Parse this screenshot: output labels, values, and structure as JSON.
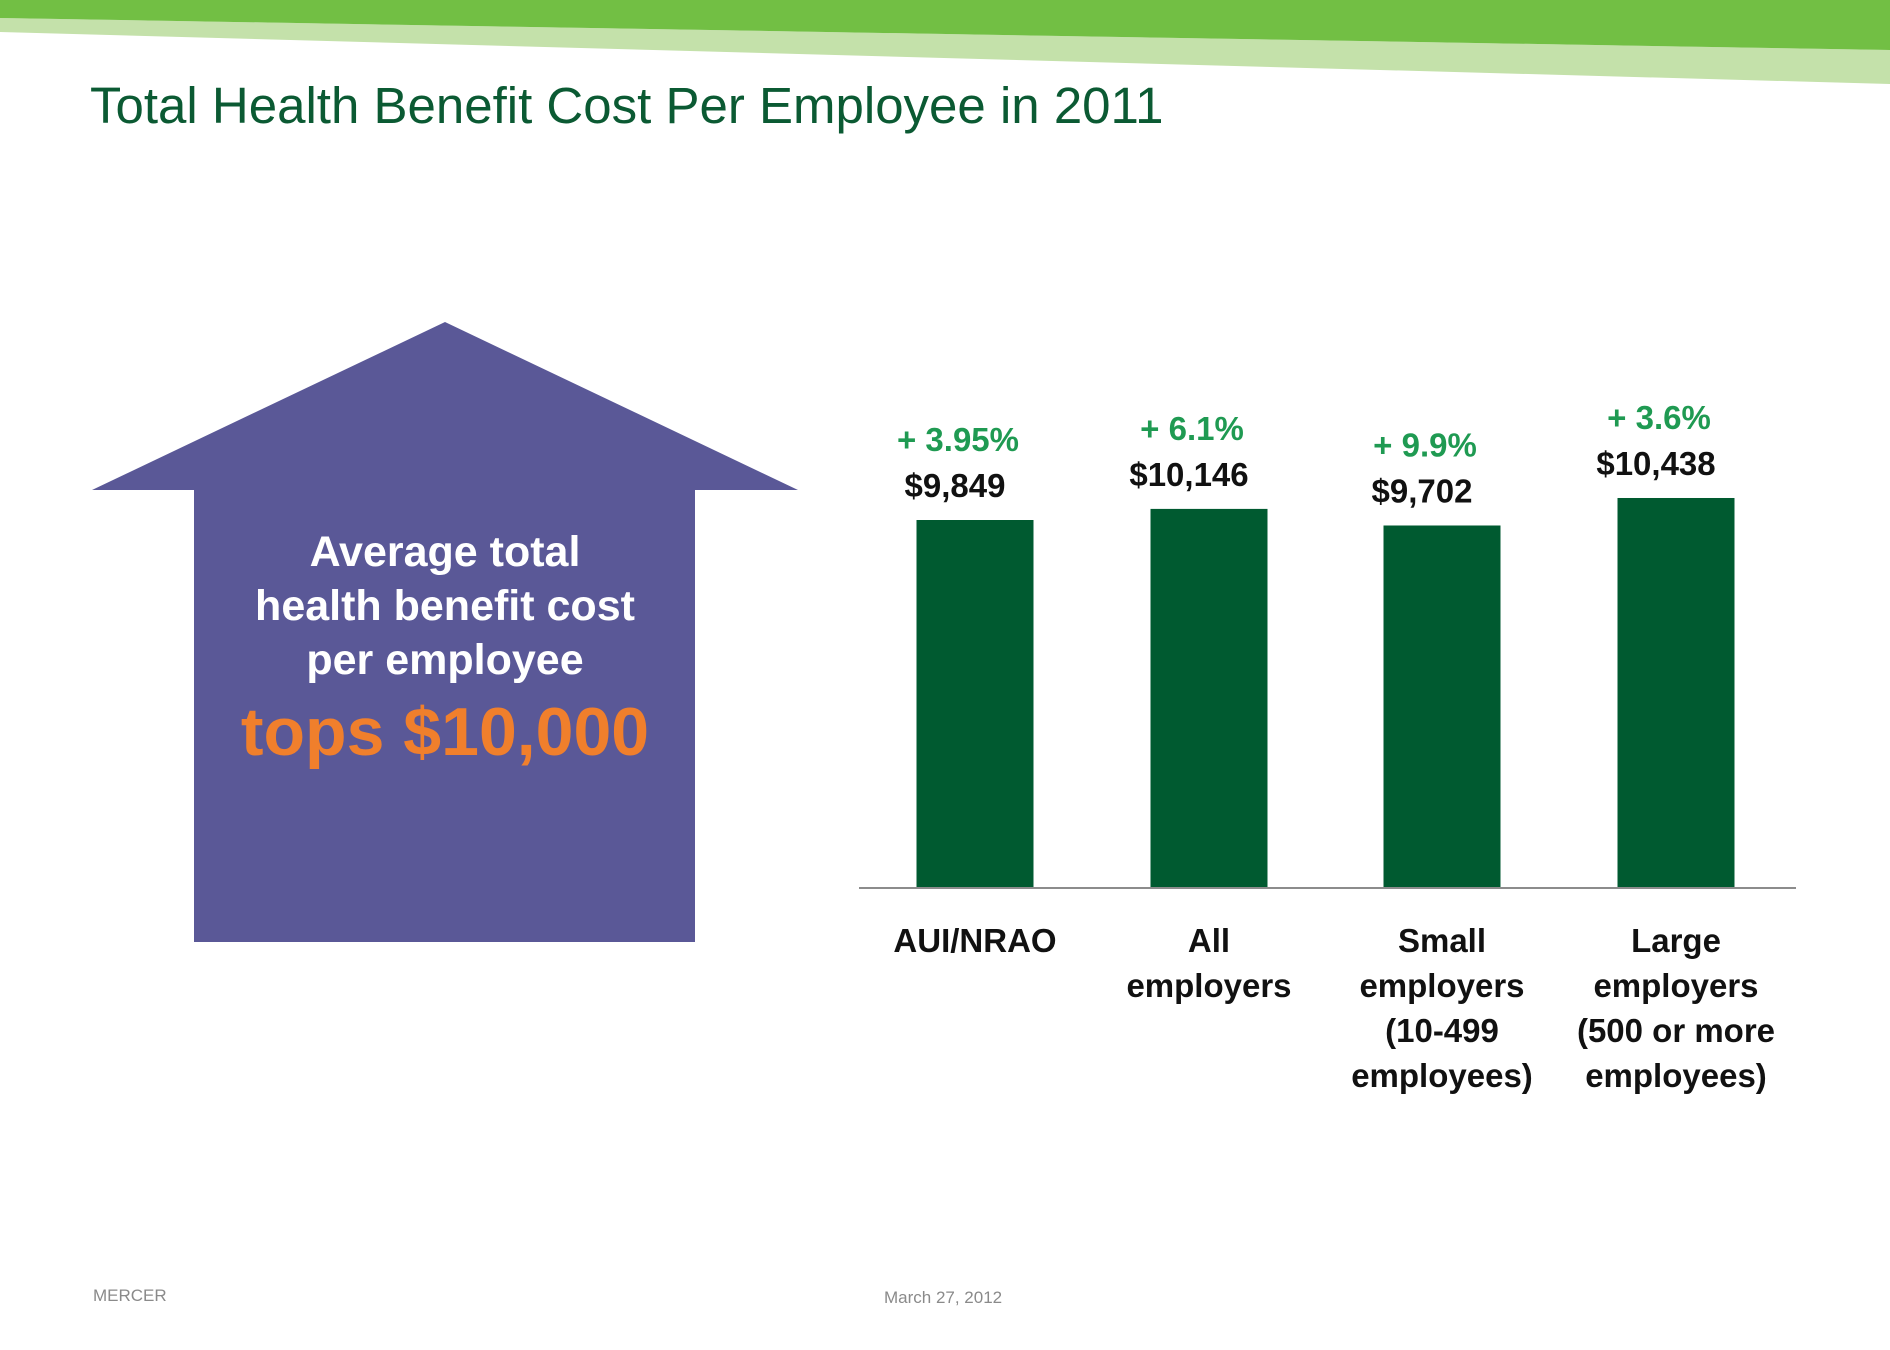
{
  "slide": {
    "title": "Total Health Benefit Cost Per Employee in 2011",
    "footer_left": "MERCER",
    "footer_date": "March 27, 2012"
  },
  "callout": {
    "line1": "Average total",
    "line2": "health benefit cost",
    "line3": "per employee",
    "highlight": "tops $10,000"
  },
  "colors": {
    "title_green": "#0b5a33",
    "bar_green": "#005a30",
    "percent_green": "#1f9a52",
    "arrow_purple": "#5a5897",
    "highlight_orange": "#f07f2c",
    "band_dark": "#72bf44",
    "band_light": "#c4e1aa"
  },
  "chart_data": {
    "type": "bar",
    "categories": [
      "AUI/NRAO",
      "All employers",
      "Small employers (10-499 employees)",
      "Large employers (500 or more employees)"
    ],
    "category_lines": [
      [
        "AUI/NRAO"
      ],
      [
        "All",
        "employers"
      ],
      [
        "Small",
        "employers",
        "(10-499",
        "employees)"
      ],
      [
        "Large",
        "employers",
        "(500 or more",
        "employees)"
      ]
    ],
    "values": [
      9849,
      10146,
      9702,
      10438
    ],
    "value_labels": [
      "$9,849",
      "$10,146",
      "$9,702",
      "$10,438"
    ],
    "change_labels": [
      "+ 3.95%",
      "+ 6.1%",
      "+ 9.9%",
      "+ 3.6%"
    ],
    "title": "",
    "xlabel": "",
    "ylabel": "",
    "grid": false,
    "legend": "none"
  }
}
